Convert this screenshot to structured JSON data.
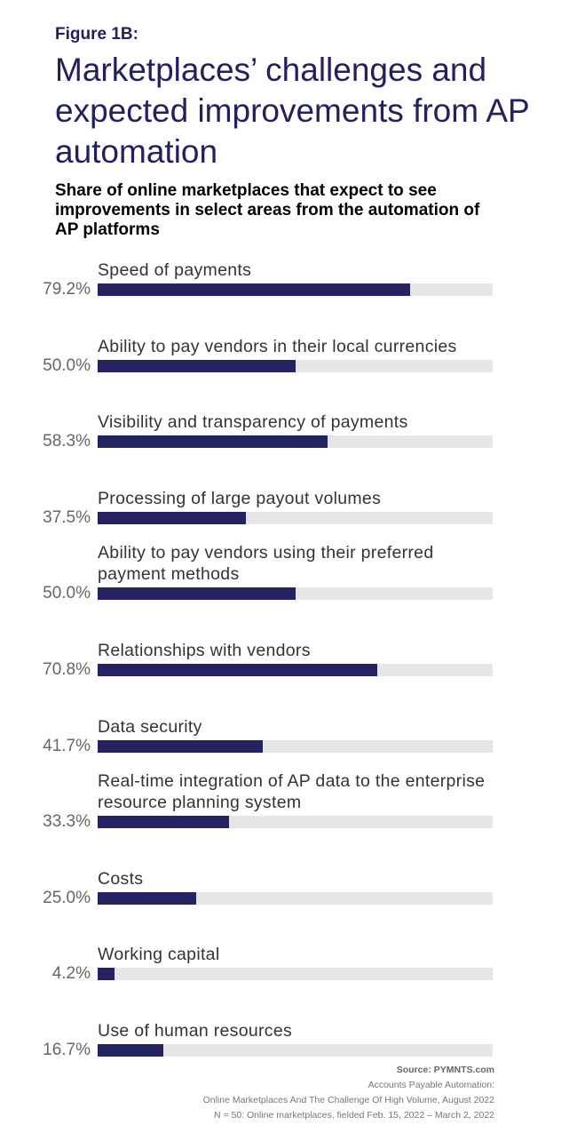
{
  "figure_label": "Figure 1B:",
  "title": "Marketplaces’ challenges and expected improvements from AP automation",
  "subtitle": "Share of online marketplaces that expect to see improvements in select areas from the automation of AP platforms",
  "colors": {
    "bar": "#252262",
    "track": "#e6e6e9",
    "title": "#23205f"
  },
  "chart_data": {
    "type": "bar",
    "orientation": "horizontal",
    "xlim": [
      0,
      100
    ],
    "categories": [
      "Speed of payments",
      "Ability to pay vendors in their local currencies",
      "Visibility and transparency of payments",
      "Processing of large payout volumes",
      "Ability to pay vendors using their preferred payment methods",
      "Relationships with vendors",
      "Data security",
      "Real-time integration of AP data to the enterprise resource planning system",
      "Costs",
      "Working capital",
      "Use of human resources"
    ],
    "values": [
      79.2,
      50.0,
      58.3,
      37.5,
      50.0,
      70.8,
      41.7,
      33.3,
      25.0,
      4.2,
      16.7
    ],
    "value_labels": [
      "79.2%",
      "50.0%",
      "58.3%",
      "37.5%",
      "50.0%",
      "70.8%",
      "41.7%",
      "33.3%",
      "25.0%",
      "4.2%",
      "16.7%"
    ]
  },
  "source": {
    "line1": "Source: PYMNTS.com",
    "line2": "Accounts Payable Automation:",
    "line3": "Online Marketplaces And The Challenge Of High Volume, August 2022",
    "line4": "N = 50: Online marketplaces, fielded Feb. 15, 2022 – March 2, 2022"
  }
}
